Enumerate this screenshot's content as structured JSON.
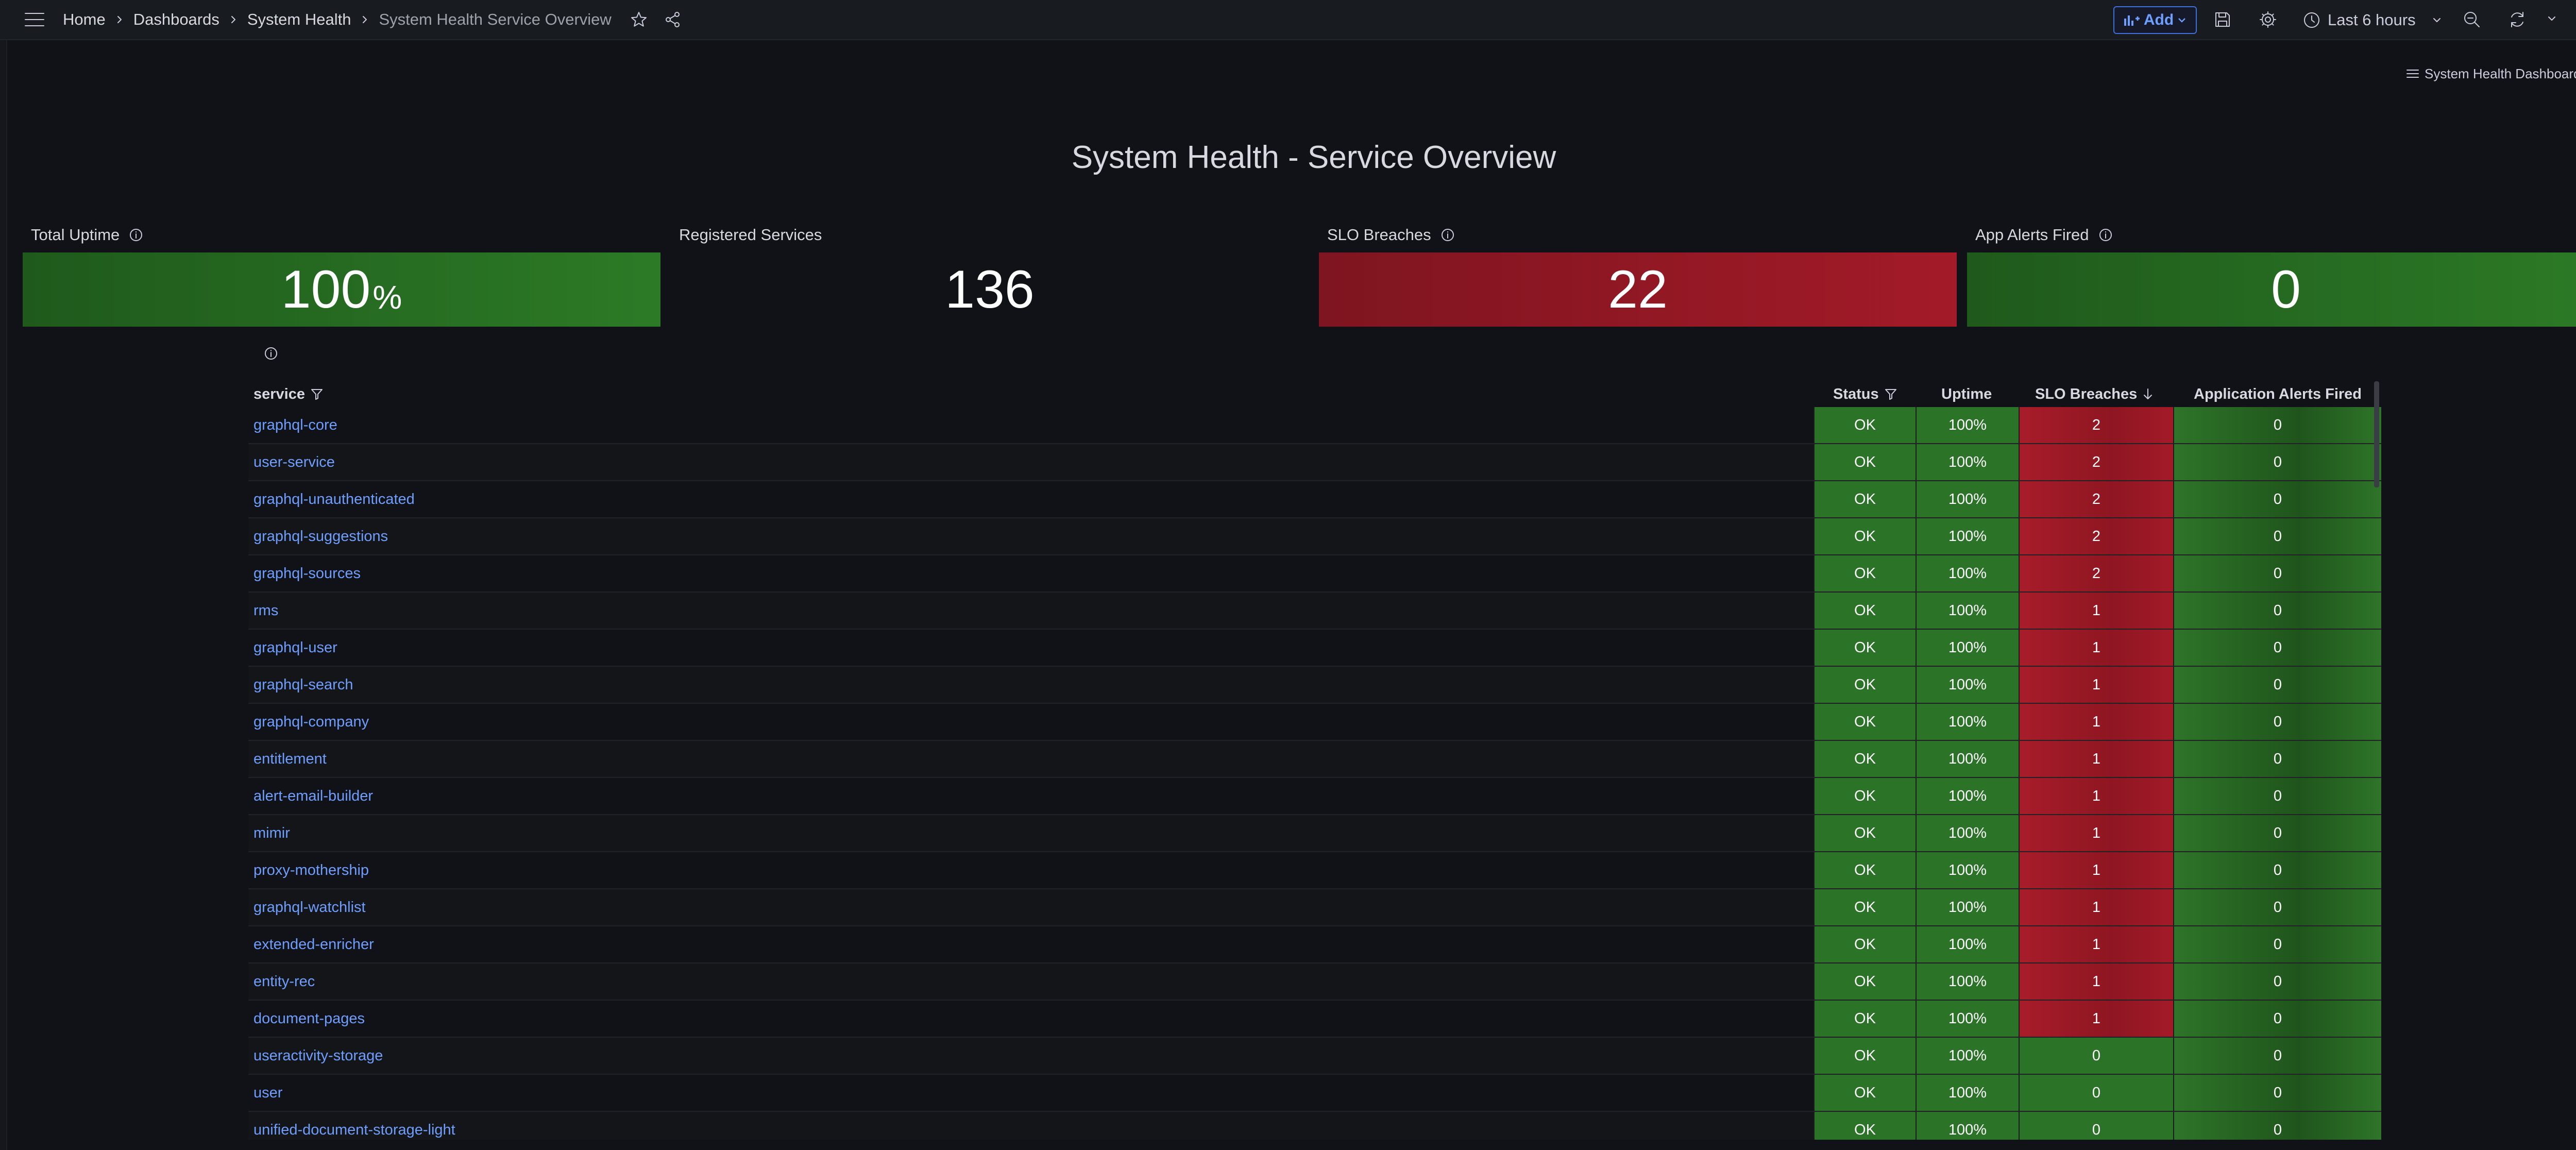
{
  "breadcrumb": {
    "items": [
      "Home",
      "Dashboards",
      "System Health"
    ],
    "current": "System Health Service Overview"
  },
  "toolbar": {
    "add_label": "Add",
    "time_range": "Last 6 hours"
  },
  "dashboard_link": "System Health Dashboards",
  "page_title": "System Health - Service Overview",
  "stats": [
    {
      "title": "Total Uptime",
      "value": "100",
      "unit": "%",
      "color": "#2c7a26"
    },
    {
      "title": "Registered Services",
      "value": "136",
      "unit": "",
      "color": "#111217"
    },
    {
      "title": "SLO Breaches",
      "value": "22",
      "unit": "",
      "color": "#a31a28"
    },
    {
      "title": "App Alerts Fired",
      "value": "0",
      "unit": "",
      "color": "#2c7a26"
    }
  ],
  "table": {
    "columns": {
      "service": "service",
      "status": "Status",
      "uptime": "Uptime",
      "slo": "SLO Breaches",
      "alerts": "Application Alerts Fired"
    },
    "rows": [
      {
        "service": "graphql-core",
        "status": "OK",
        "uptime": "100%",
        "slo": "2",
        "alerts": "0"
      },
      {
        "service": "user-service",
        "status": "OK",
        "uptime": "100%",
        "slo": "2",
        "alerts": "0"
      },
      {
        "service": "graphql-unauthenticated",
        "status": "OK",
        "uptime": "100%",
        "slo": "2",
        "alerts": "0"
      },
      {
        "service": "graphql-suggestions",
        "status": "OK",
        "uptime": "100%",
        "slo": "2",
        "alerts": "0"
      },
      {
        "service": "graphql-sources",
        "status": "OK",
        "uptime": "100%",
        "slo": "2",
        "alerts": "0"
      },
      {
        "service": "rms",
        "status": "OK",
        "uptime": "100%",
        "slo": "1",
        "alerts": "0"
      },
      {
        "service": "graphql-user",
        "status": "OK",
        "uptime": "100%",
        "slo": "1",
        "alerts": "0"
      },
      {
        "service": "graphql-search",
        "status": "OK",
        "uptime": "100%",
        "slo": "1",
        "alerts": "0"
      },
      {
        "service": "graphql-company",
        "status": "OK",
        "uptime": "100%",
        "slo": "1",
        "alerts": "0"
      },
      {
        "service": "entitlement",
        "status": "OK",
        "uptime": "100%",
        "slo": "1",
        "alerts": "0"
      },
      {
        "service": "alert-email-builder",
        "status": "OK",
        "uptime": "100%",
        "slo": "1",
        "alerts": "0"
      },
      {
        "service": "mimir",
        "status": "OK",
        "uptime": "100%",
        "slo": "1",
        "alerts": "0"
      },
      {
        "service": "proxy-mothership",
        "status": "OK",
        "uptime": "100%",
        "slo": "1",
        "alerts": "0"
      },
      {
        "service": "graphql-watchlist",
        "status": "OK",
        "uptime": "100%",
        "slo": "1",
        "alerts": "0"
      },
      {
        "service": "extended-enricher",
        "status": "OK",
        "uptime": "100%",
        "slo": "1",
        "alerts": "0"
      },
      {
        "service": "entity-rec",
        "status": "OK",
        "uptime": "100%",
        "slo": "1",
        "alerts": "0"
      },
      {
        "service": "document-pages",
        "status": "OK",
        "uptime": "100%",
        "slo": "1",
        "alerts": "0"
      },
      {
        "service": "useractivity-storage",
        "status": "OK",
        "uptime": "100%",
        "slo": "0",
        "alerts": "0"
      },
      {
        "service": "user",
        "status": "OK",
        "uptime": "100%",
        "slo": "0",
        "alerts": "0"
      },
      {
        "service": "unified-document-storage-light",
        "status": "OK",
        "uptime": "100%",
        "slo": "0",
        "alerts": "0"
      }
    ]
  }
}
